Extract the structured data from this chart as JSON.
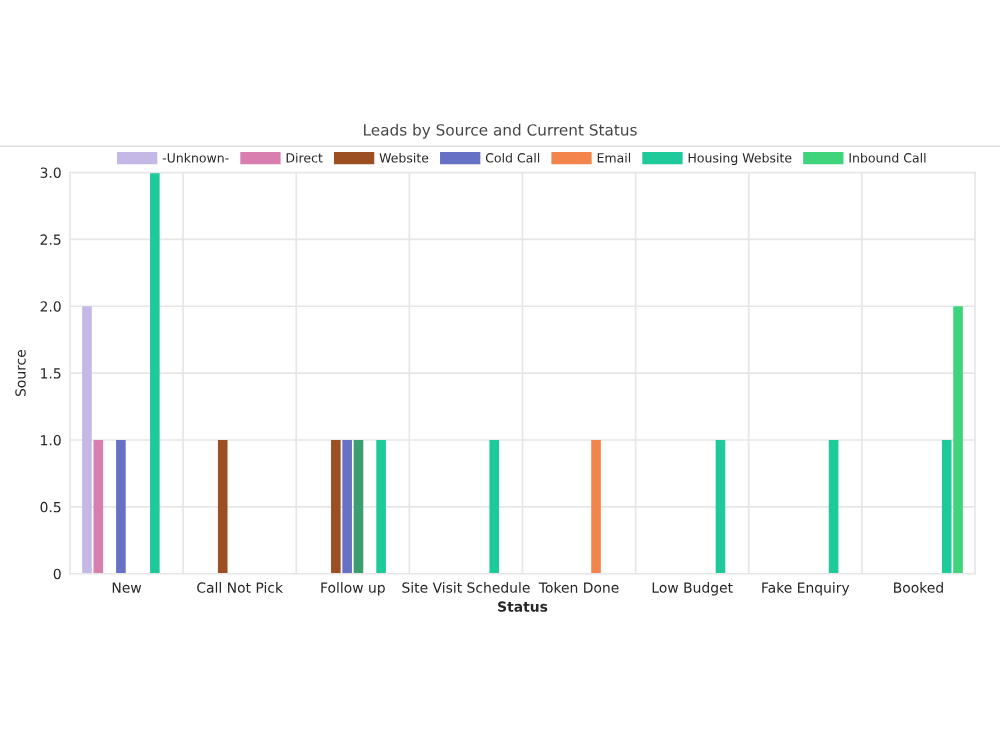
{
  "chart_data": {
    "type": "bar",
    "title": "Leads by Source and Current Status",
    "xlabel": "Status",
    "ylabel": "Source",
    "categories": [
      "New",
      "Call Not Pick",
      "Follow up",
      "Site Visit Schedule",
      "Token Done",
      "Low Budget",
      "Fake Enquiry",
      "Booked"
    ],
    "series": [
      {
        "name": "-Unknown-",
        "color": "#c5b8e6",
        "values": [
          2,
          0,
          0,
          0,
          0,
          0,
          0,
          0
        ]
      },
      {
        "name": "Direct",
        "color": "#d87fb0",
        "values": [
          1,
          0,
          0,
          0,
          0,
          0,
          0,
          0
        ]
      },
      {
        "name": "Website",
        "color": "#9c4f22",
        "values": [
          0,
          1,
          1,
          0,
          0,
          0,
          0,
          0
        ]
      },
      {
        "name": "Cold Call",
        "color": "#6670c4",
        "values": [
          1,
          0,
          1,
          0,
          0,
          0,
          0,
          0
        ]
      },
      {
        "color": "#3a9e6e",
        "values": [
          0,
          0,
          1,
          0,
          0,
          0,
          0,
          0
        ]
      },
      {
        "name": "Email",
        "color": "#f2844c",
        "values": [
          0,
          0,
          0,
          0,
          1,
          0,
          0,
          0
        ]
      },
      {
        "name": "Housing Website",
        "color": "#1ec99a",
        "values": [
          3,
          0,
          1,
          1,
          0,
          1,
          1,
          1
        ]
      },
      {
        "name": "Inbound Call",
        "color": "#3fd47c",
        "values": [
          0,
          0,
          0,
          0,
          0,
          0,
          0,
          2
        ]
      }
    ],
    "ylim": [
      0,
      3
    ],
    "yticks": [
      0,
      {
        "value": 0.5,
        "label": "0.5"
      },
      {
        "value": 1,
        "label": "1.0"
      },
      {
        "value": 1.5,
        "label": "1.5"
      },
      {
        "value": 2,
        "label": "2.0"
      },
      {
        "value": 2.5,
        "label": "2.5"
      },
      {
        "value": 3,
        "label": "3.0"
      }
    ],
    "grid": true,
    "legend": "top"
  }
}
